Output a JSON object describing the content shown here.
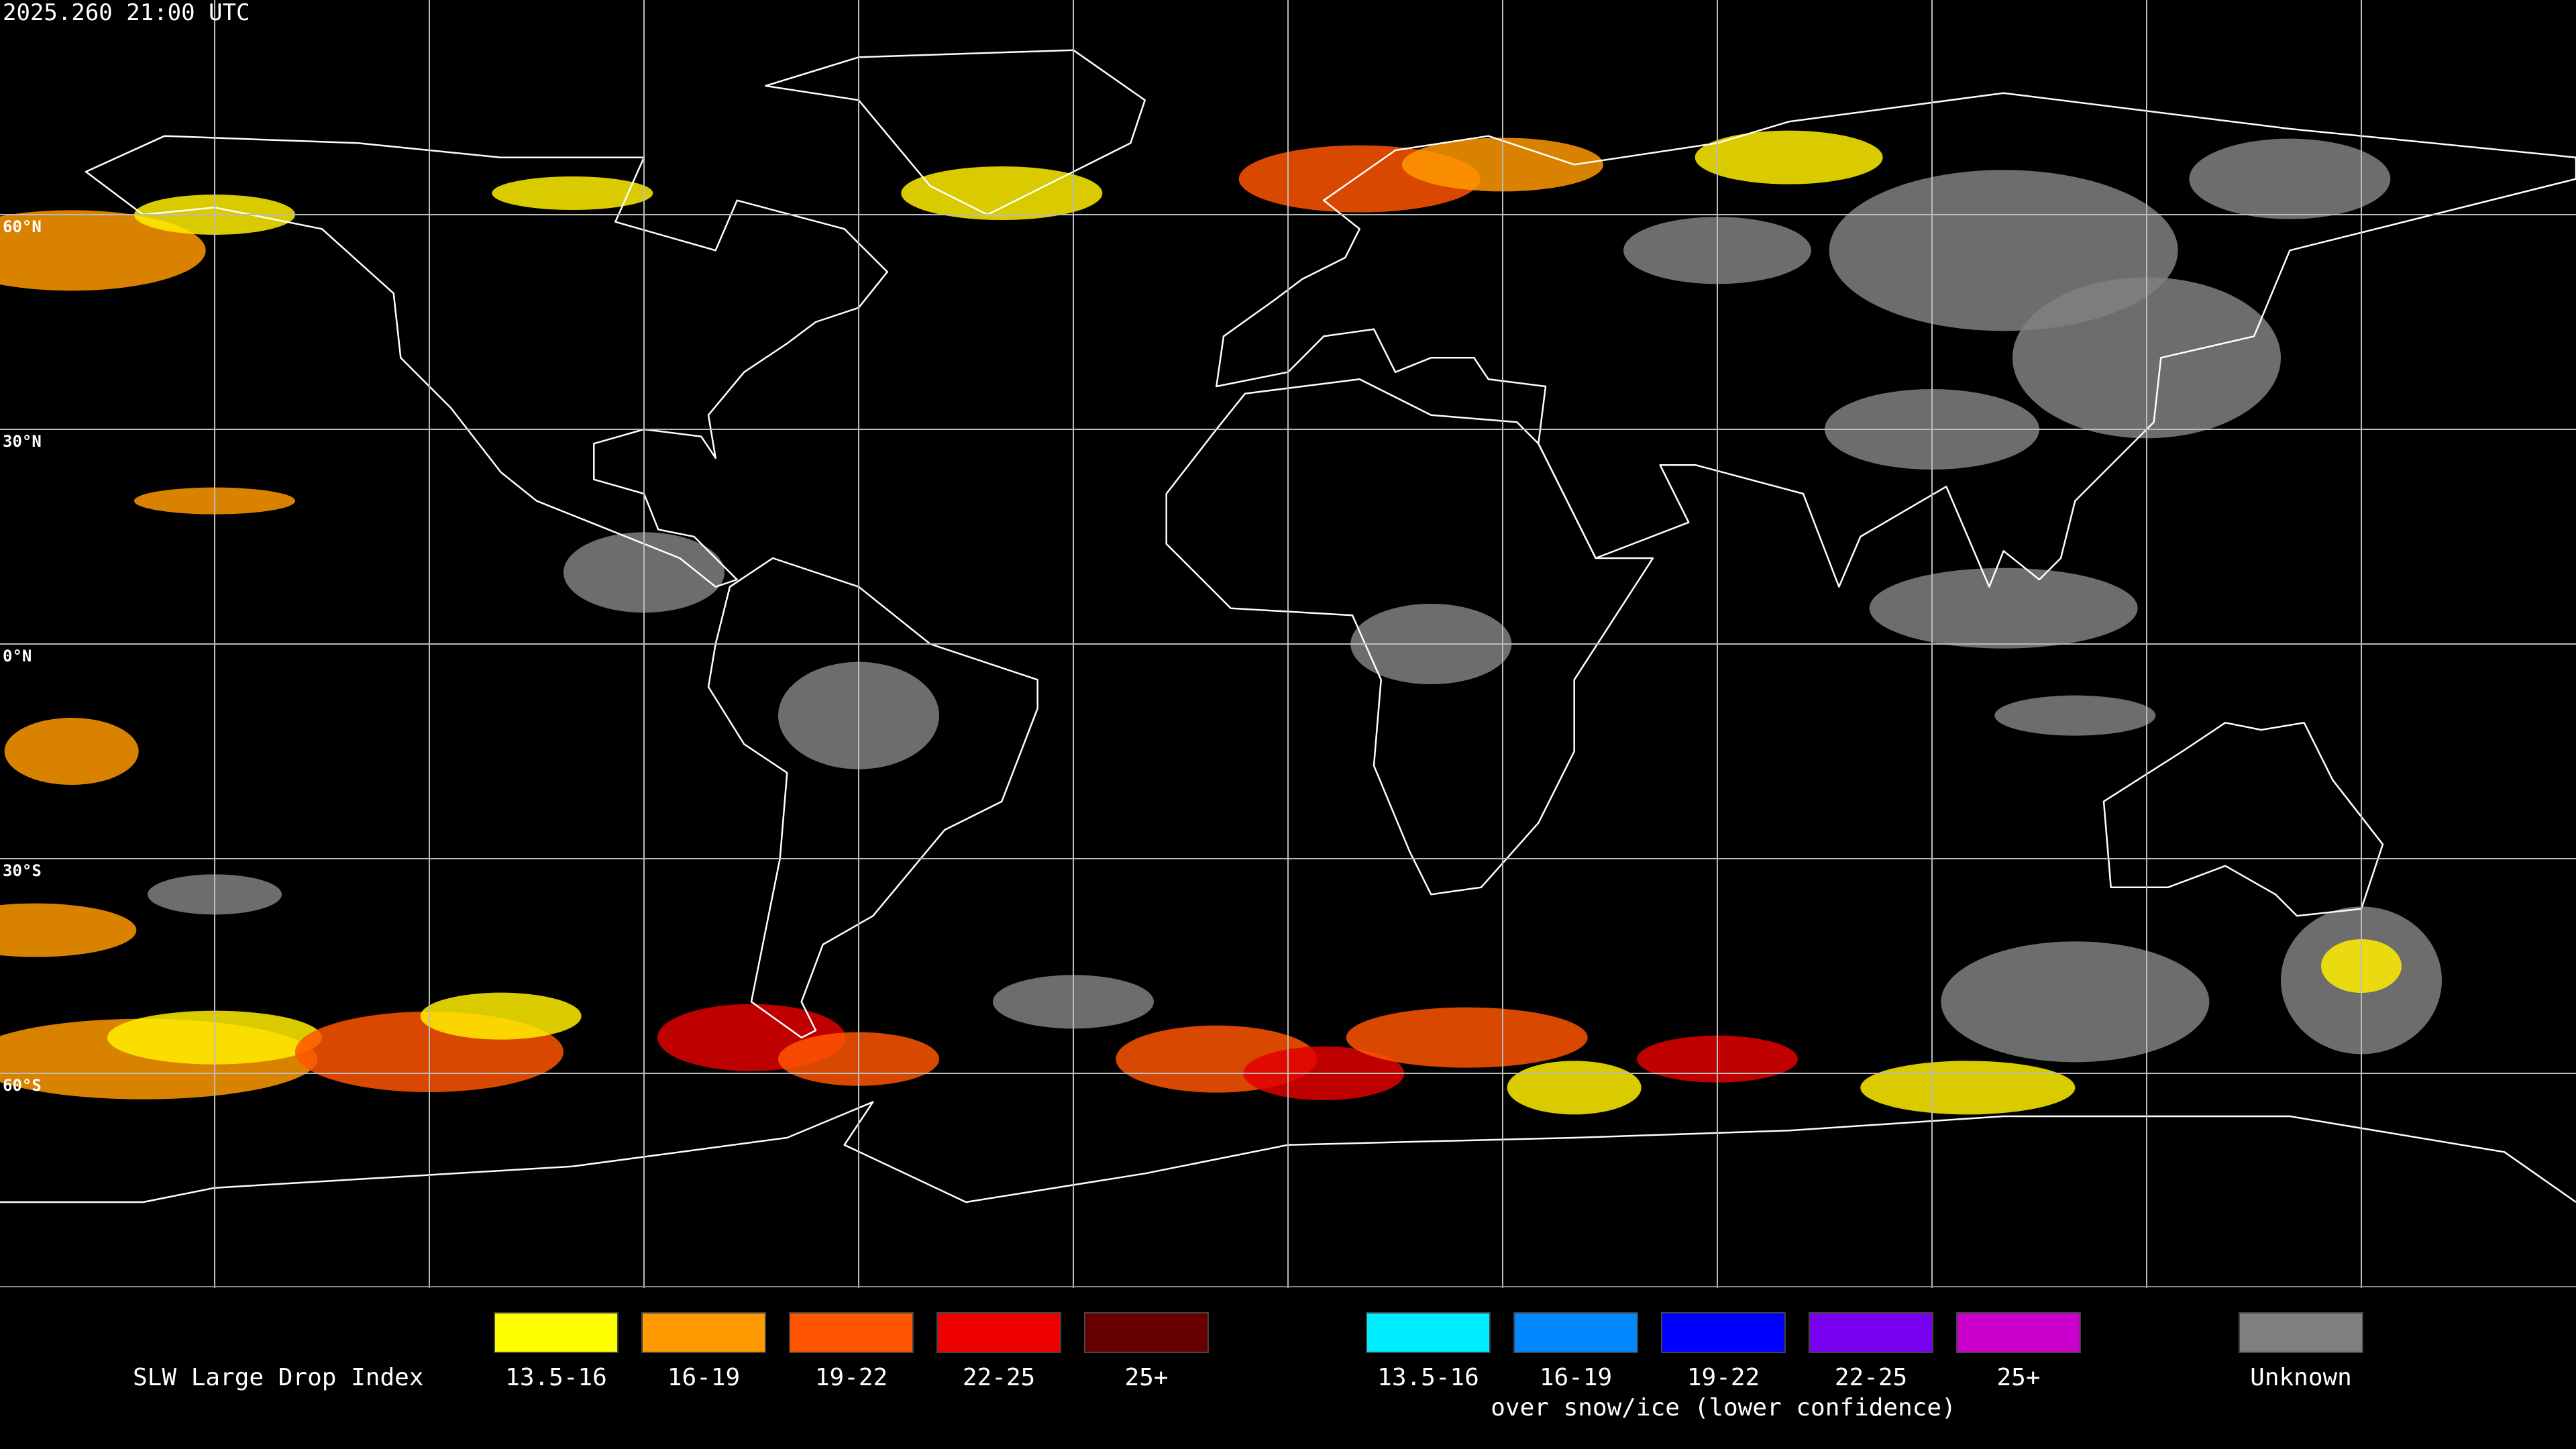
{
  "header": {
    "timestamp": "2025.260 21:00 UTC"
  },
  "map": {
    "latitude_labels": [
      "60°N",
      "30°N",
      "0°N",
      "30°S",
      "60°S"
    ]
  },
  "legend": {
    "title": "SLW Large Drop Index",
    "groups": [
      {
        "items": [
          {
            "label": "13.5-16",
            "color": "#ffff00"
          },
          {
            "label": "16-19",
            "color": "#ff9900"
          },
          {
            "label": "19-22",
            "color": "#ff5500"
          },
          {
            "label": "22-25",
            "color": "#ee0000"
          },
          {
            "label": "25+",
            "color": "#660000"
          }
        ]
      },
      {
        "items": [
          {
            "label": "13.5-16",
            "color": "#00eeff"
          },
          {
            "label": "16-19",
            "color": "#0088ff"
          },
          {
            "label": "19-22",
            "color": "#0000ff"
          },
          {
            "label": "22-25",
            "color": "#7700ee"
          },
          {
            "label": "25+",
            "color": "#cc00cc"
          }
        ],
        "caption": "over snow/ice (lower confidence)"
      }
    ],
    "unknown": {
      "label": "Unknown",
      "color": "#808080"
    }
  }
}
